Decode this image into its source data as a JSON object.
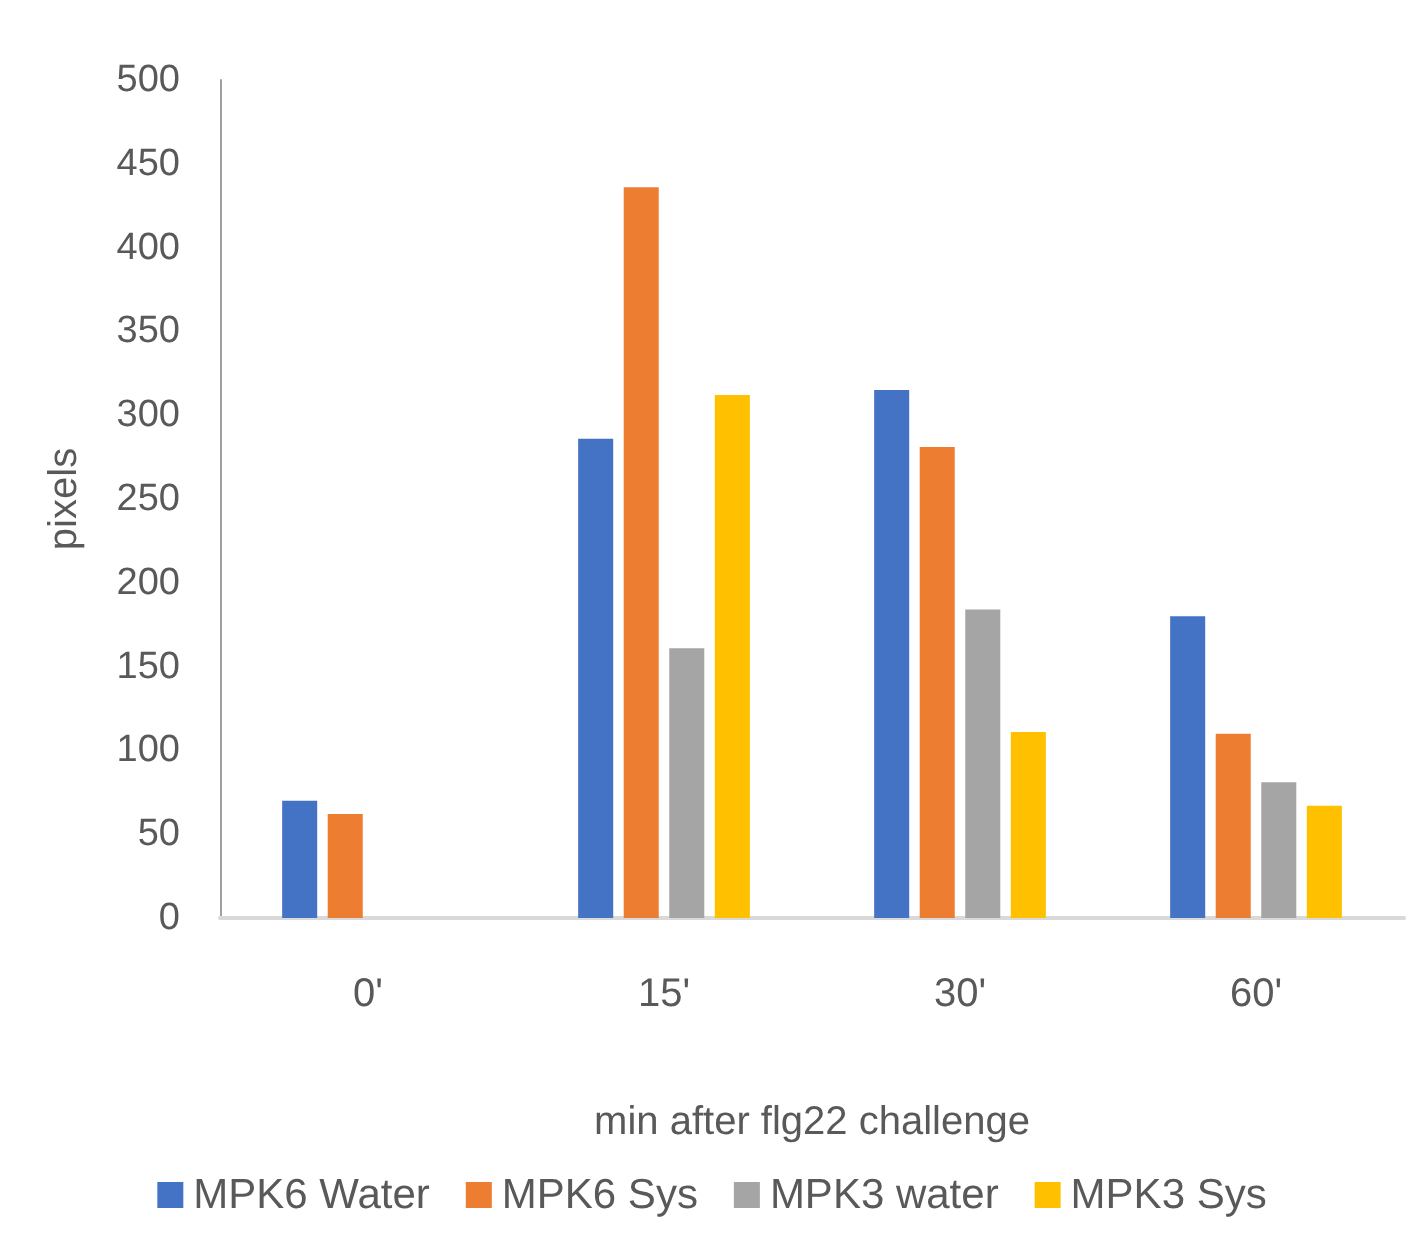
{
  "chart_data": {
    "type": "bar",
    "xlabel": "min after flg22 challenge",
    "ylabel": "pixels",
    "categories": [
      "0'",
      "15'",
      "30'",
      "60'"
    ],
    "series": [
      {
        "name": "MPK6 Water",
        "color": "#4472c4",
        "values": [
          70,
          286,
          315,
          180
        ]
      },
      {
        "name": "MPK6 Sys",
        "color": "#ed7d31",
        "values": [
          62,
          436,
          281,
          110
        ]
      },
      {
        "name": "MPK3 water",
        "color": "#a5a5a5",
        "values": [
          null,
          161,
          184,
          81
        ]
      },
      {
        "name": "MPK3 Sys",
        "color": "#ffc000",
        "values": [
          null,
          312,
          111,
          67
        ]
      }
    ],
    "ylim": [
      0,
      500
    ],
    "yticks": [
      0,
      50,
      100,
      150,
      200,
      250,
      300,
      350,
      400,
      450,
      500
    ],
    "grid": false,
    "legend": "bottom"
  }
}
